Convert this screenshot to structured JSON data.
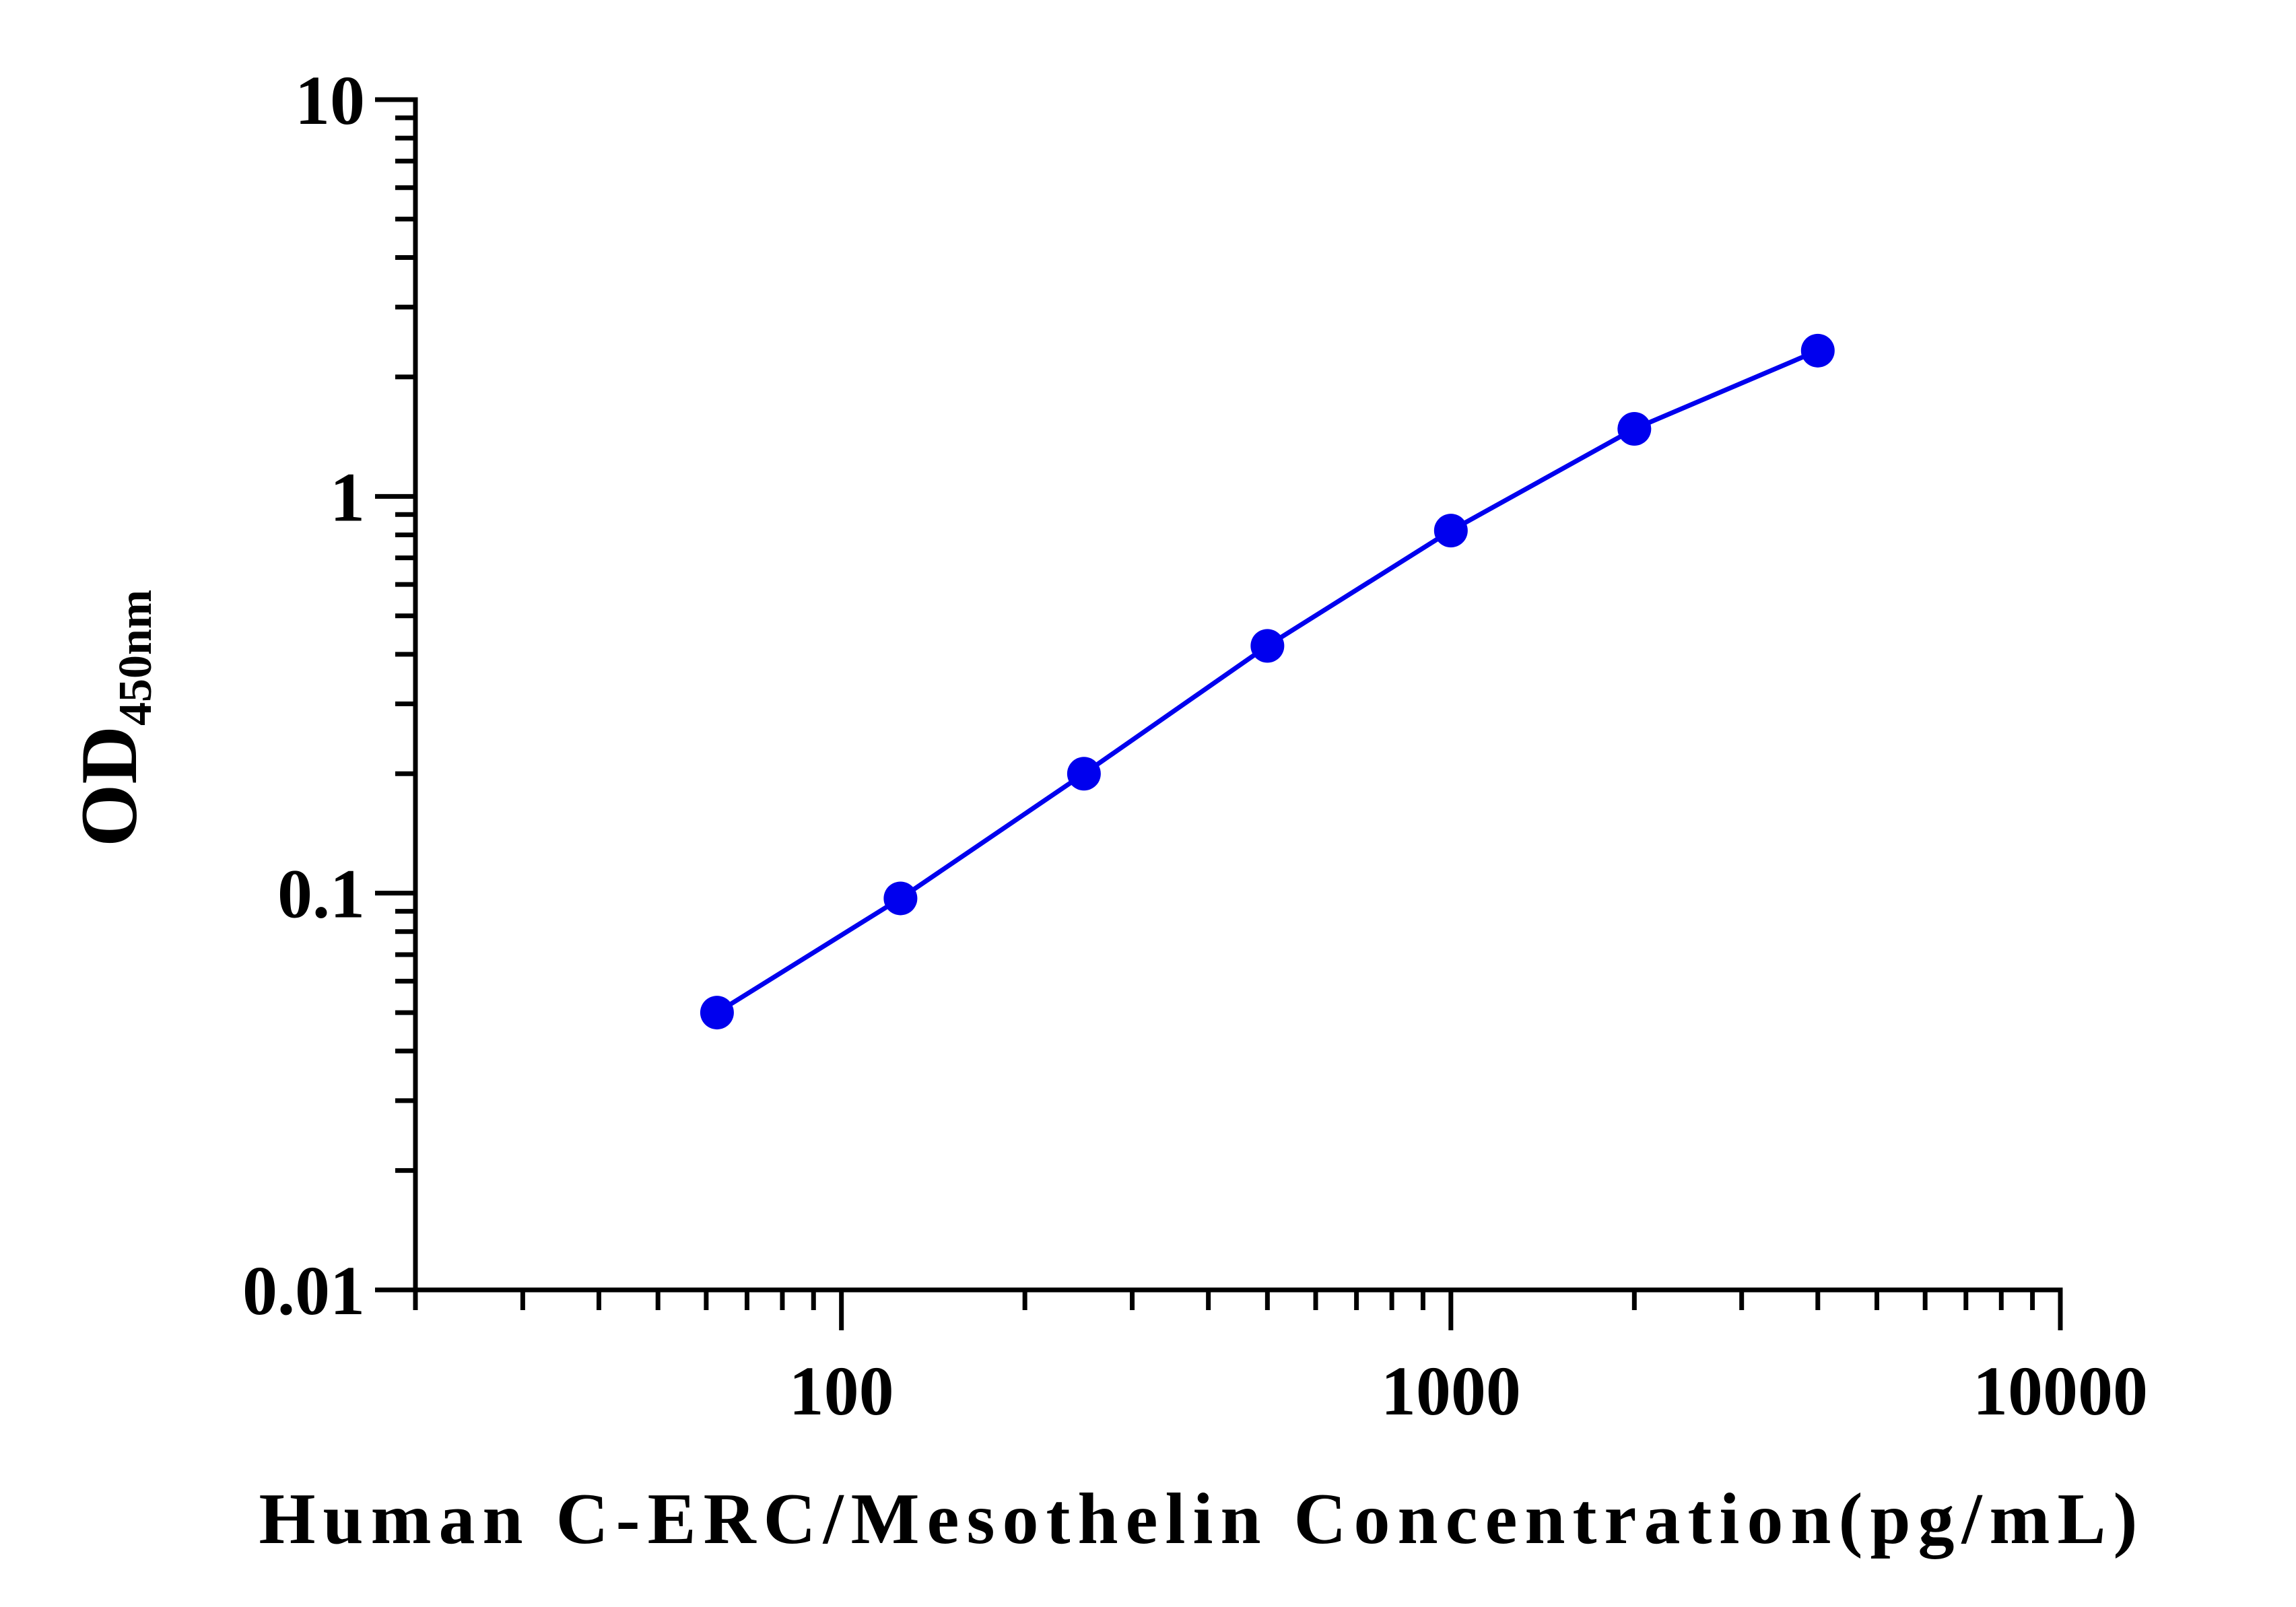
{
  "chart_data": {
    "type": "line",
    "title": "",
    "xlabel": "Human C-ERC/Mesothelin Concentration(pg/mL)",
    "ylabel": "OD",
    "ylabel_subscript": "450nm",
    "x_scale": "log",
    "y_scale": "log",
    "xlim": [
      20,
      10000
    ],
    "ylim": [
      0.01,
      10
    ],
    "x_ticks": [
      {
        "value": 100,
        "label": "100"
      },
      {
        "value": 1000,
        "label": "1000"
      },
      {
        "value": 10000,
        "label": "10000"
      }
    ],
    "y_ticks": [
      {
        "value": 0.01,
        "label": "0.01"
      },
      {
        "value": 0.1,
        "label": "0.1"
      },
      {
        "value": 1,
        "label": "1"
      },
      {
        "value": 10,
        "label": "10"
      }
    ],
    "grid": false,
    "legend": "none",
    "series": [
      {
        "color": "#0000ee",
        "marker": "circle",
        "x": [
          62.5,
          125,
          250,
          500,
          1000,
          2000,
          4000
        ],
        "y": [
          0.05,
          0.097,
          0.2,
          0.42,
          0.82,
          1.48,
          2.33
        ]
      }
    ]
  }
}
